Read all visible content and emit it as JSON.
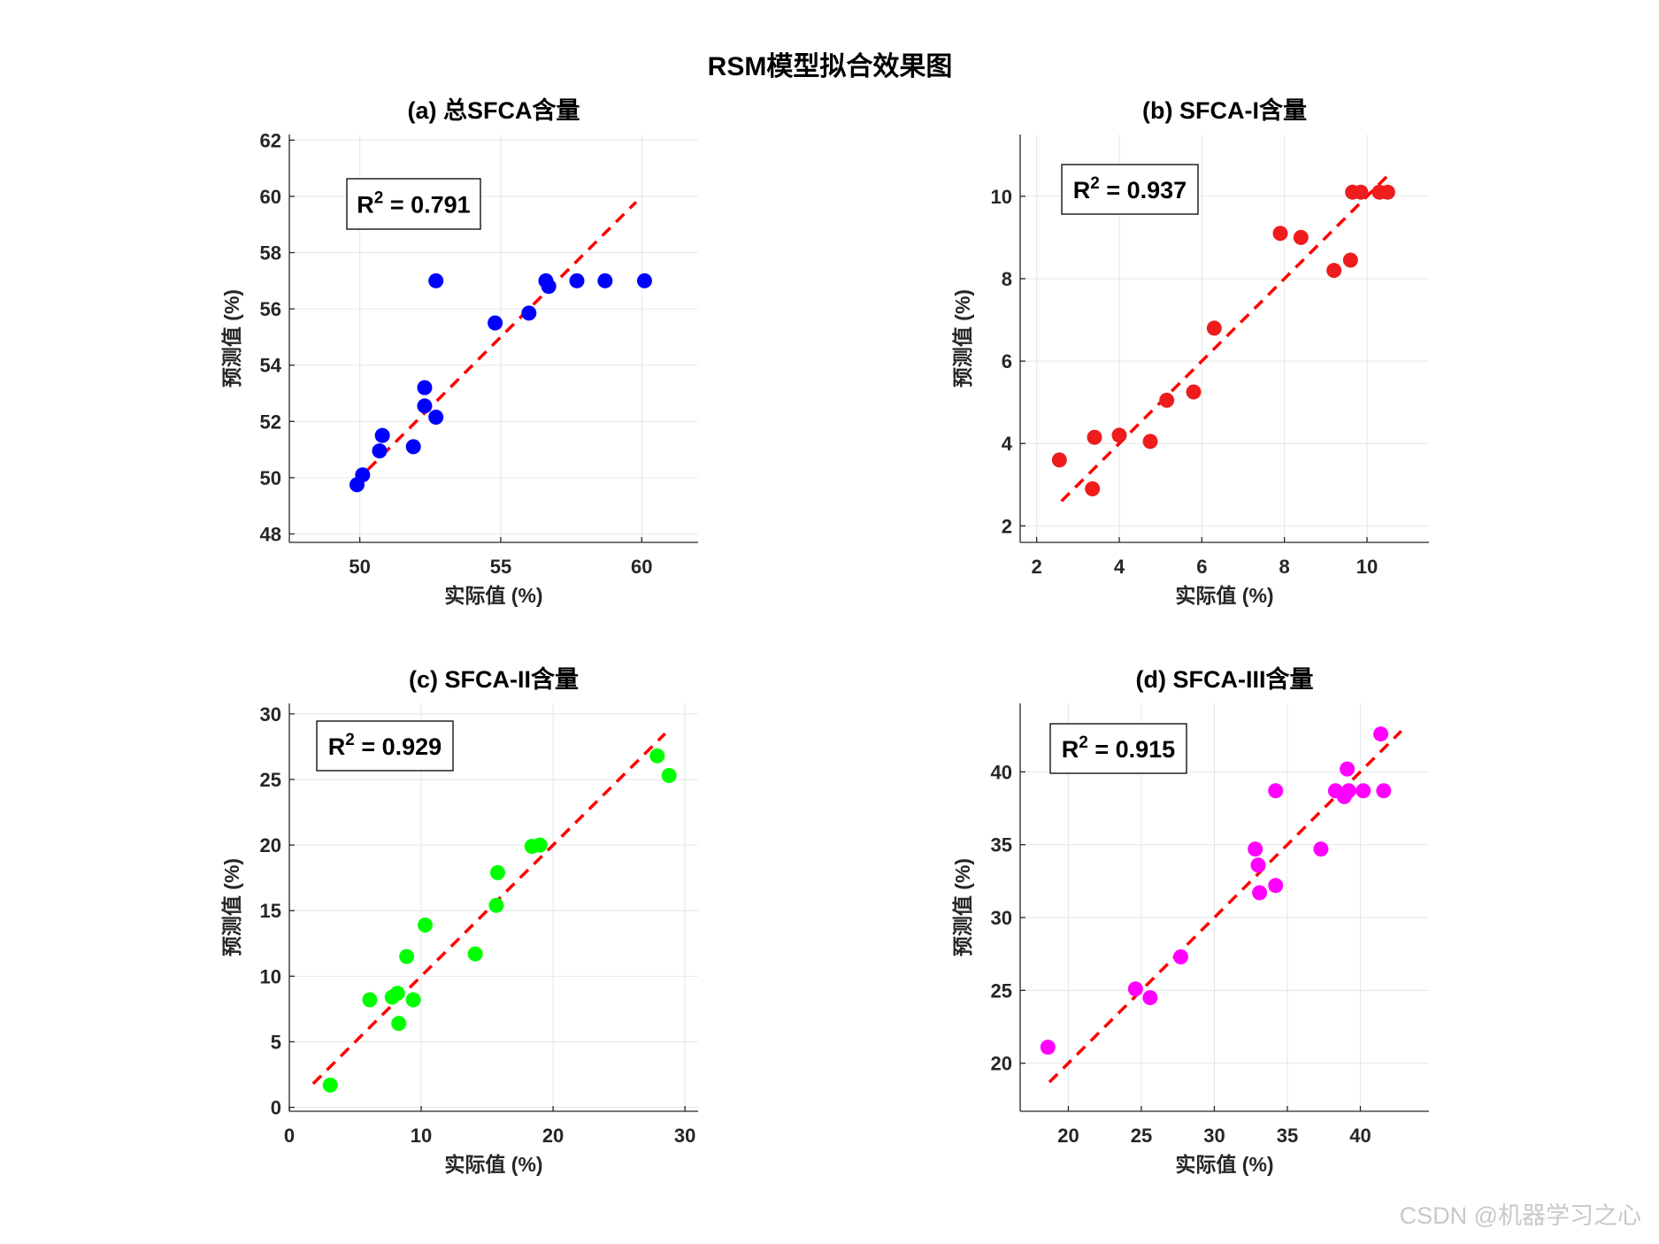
{
  "figure_title": "RSM模型拟合效果图",
  "credit": "CSDN @机器学习之心",
  "colors": {
    "fit_line": "#ff0000",
    "grid": "#e6e6e6",
    "axis": "#262626"
  },
  "chart_data": [
    {
      "type": "scatter",
      "title": "(a) 总SFCA含量",
      "xlabel": "实际值 (%)",
      "ylabel": "预测值 (%)",
      "r2_prefix": "R",
      "r2_exp": "2",
      "r2_value": " = 0.791",
      "color": "#0000ff",
      "xlim": [
        47.5,
        62
      ],
      "ylim": [
        47.7,
        62.2
      ],
      "xticks": [
        50,
        55,
        60
      ],
      "yticks": [
        48,
        50,
        52,
        54,
        56,
        58,
        60,
        62
      ],
      "grid": true,
      "fit_line": [
        [
          49.8,
          49.8
        ],
        [
          59.8,
          59.8
        ]
      ],
      "points": [
        [
          49.9,
          49.75
        ],
        [
          50.1,
          50.1
        ],
        [
          50.7,
          50.95
        ],
        [
          50.8,
          51.5
        ],
        [
          51.9,
          51.1
        ],
        [
          52.3,
          52.55
        ],
        [
          52.3,
          53.2
        ],
        [
          52.7,
          52.15
        ],
        [
          52.7,
          57.0
        ],
        [
          54.8,
          55.5
        ],
        [
          56.0,
          55.85
        ],
        [
          56.6,
          57.0
        ],
        [
          56.7,
          56.8
        ],
        [
          57.7,
          57.0
        ],
        [
          58.7,
          57.0
        ],
        [
          60.1,
          57.0
        ]
      ]
    },
    {
      "type": "scatter",
      "title": "(b) SFCA-I含量",
      "xlabel": "实际值 (%)",
      "ylabel": "预测值 (%)",
      "r2_prefix": "R",
      "r2_exp": "2",
      "r2_value": " = 0.937",
      "color": "#ee1c1c",
      "xlim": [
        1.6,
        11.5
      ],
      "ylim": [
        1.6,
        11.5
      ],
      "xticks": [
        2,
        4,
        6,
        8,
        10
      ],
      "yticks": [
        2,
        4,
        6,
        8,
        10
      ],
      "grid": true,
      "fit_line": [
        [
          2.6,
          2.6
        ],
        [
          10.5,
          10.5
        ]
      ],
      "points": [
        [
          2.55,
          3.6
        ],
        [
          3.35,
          2.9
        ],
        [
          3.4,
          4.15
        ],
        [
          4.0,
          4.2
        ],
        [
          4.75,
          4.05
        ],
        [
          5.15,
          5.05
        ],
        [
          5.8,
          5.25
        ],
        [
          6.3,
          6.8
        ],
        [
          7.9,
          9.1
        ],
        [
          8.4,
          9.0
        ],
        [
          9.2,
          8.2
        ],
        [
          9.6,
          8.45
        ],
        [
          9.65,
          10.1
        ],
        [
          9.85,
          10.1
        ],
        [
          10.3,
          10.1
        ],
        [
          10.5,
          10.1
        ]
      ]
    },
    {
      "type": "scatter",
      "title": "(c) SFCA-II含量",
      "xlabel": "实际值 (%)",
      "ylabel": "预测值 (%)",
      "r2_prefix": "R",
      "r2_exp": "2",
      "r2_value": " = 0.929",
      "color": "#00ff00",
      "xlim": [
        0,
        31
      ],
      "ylim": [
        -0.3,
        30.8
      ],
      "xticks": [
        0,
        10,
        20,
        30
      ],
      "yticks": [
        0,
        5,
        10,
        15,
        20,
        25,
        30
      ],
      "grid": true,
      "fit_line": [
        [
          1.8,
          1.8
        ],
        [
          28.5,
          28.5
        ]
      ],
      "points": [
        [
          3.1,
          1.7
        ],
        [
          6.1,
          8.2
        ],
        [
          7.8,
          8.4
        ],
        [
          8.2,
          8.7
        ],
        [
          8.3,
          6.4
        ],
        [
          8.9,
          11.5
        ],
        [
          9.4,
          8.2
        ],
        [
          10.3,
          13.9
        ],
        [
          14.1,
          11.7
        ],
        [
          15.7,
          15.4
        ],
        [
          15.8,
          17.9
        ],
        [
          18.4,
          19.9
        ],
        [
          19.0,
          20.0
        ],
        [
          27.9,
          26.8
        ],
        [
          28.8,
          25.3
        ]
      ]
    },
    {
      "type": "scatter",
      "title": "(d) SFCA-III含量",
      "xlabel": "实际值 (%)",
      "ylabel": "预测值 (%)",
      "r2_prefix": "R",
      "r2_exp": "2",
      "r2_value": " = 0.915",
      "color": "#ff00ff",
      "xlim": [
        16.7,
        44.7
      ],
      "ylim": [
        16.7,
        44.7
      ],
      "xticks": [
        20,
        25,
        30,
        35,
        40
      ],
      "yticks": [
        20,
        25,
        30,
        35,
        40
      ],
      "grid": true,
      "fit_line": [
        [
          18.7,
          18.7
        ],
        [
          42.8,
          42.8
        ]
      ],
      "points": [
        [
          18.6,
          21.1
        ],
        [
          24.6,
          25.1
        ],
        [
          25.6,
          24.5
        ],
        [
          27.7,
          27.3
        ],
        [
          32.8,
          34.7
        ],
        [
          33.0,
          33.6
        ],
        [
          33.1,
          31.7
        ],
        [
          34.2,
          32.2
        ],
        [
          34.2,
          38.7
        ],
        [
          37.3,
          34.7
        ],
        [
          38.3,
          38.7
        ],
        [
          38.9,
          38.3
        ],
        [
          39.1,
          40.2
        ],
        [
          39.2,
          38.7
        ],
        [
          40.2,
          38.7
        ],
        [
          41.4,
          42.6
        ],
        [
          41.6,
          38.7
        ]
      ]
    }
  ]
}
